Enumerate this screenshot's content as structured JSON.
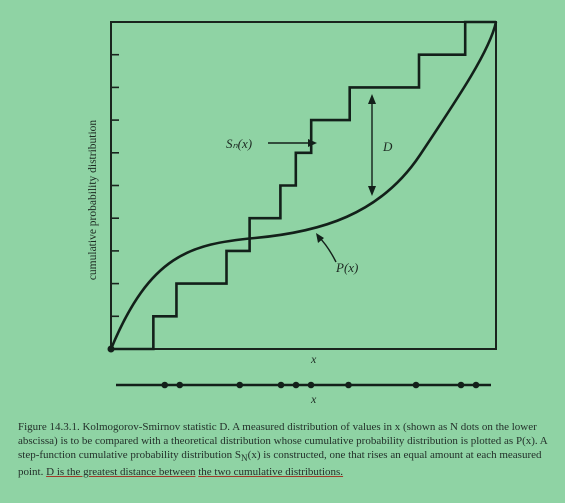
{
  "figure": {
    "ylabel": "cumulative probability distribution",
    "xlabel_main": "x",
    "xlabel_dots": "x",
    "label_sn": "Sₙ(x)",
    "label_p": "P(x)",
    "label_d": "D"
  },
  "chart_data": {
    "type": "line",
    "series": [
      {
        "name": "Sₙ(x)",
        "step_x": [
          0.03,
          0.11,
          0.17,
          0.3,
          0.36,
          0.44,
          0.48,
          0.52,
          0.62,
          0.8,
          0.92,
          1.0
        ],
        "step_y": [
          0,
          0.1,
          0.2,
          0.3,
          0.4,
          0.5,
          0.6,
          0.7,
          0.8,
          0.9,
          1.0
        ]
      },
      {
        "name": "P(x)",
        "shape": "smooth S-shaped cumulative curve from (0,0) to (1,1)"
      }
    ],
    "sample_points_x": [
      0.13,
      0.17,
      0.33,
      0.44,
      0.48,
      0.52,
      0.62,
      0.8,
      0.92,
      0.96
    ],
    "ylim": [
      0,
      1
    ],
    "xlim": [
      0,
      1
    ],
    "annotation": "D marks the greatest vertical distance between Sₙ(x) and P(x)"
  },
  "caption": {
    "fig_no": "Figure 14.3.1.",
    "part1": "Kolmogorov-Smirnov statistic D. A measured distribution of values in x (shown as N dots on the lower abscissa) is to be compared with a theoretical distribution whose cumulative probability distribution is plotted as P(x). A step-function cumulative probability distribution S",
    "sub": "N",
    "part2": "(x) is constructed, one that rises an equal amount at each measured point.",
    "part3": "D is the greatest distance between",
    "part4": "the two cumulative distributions."
  }
}
